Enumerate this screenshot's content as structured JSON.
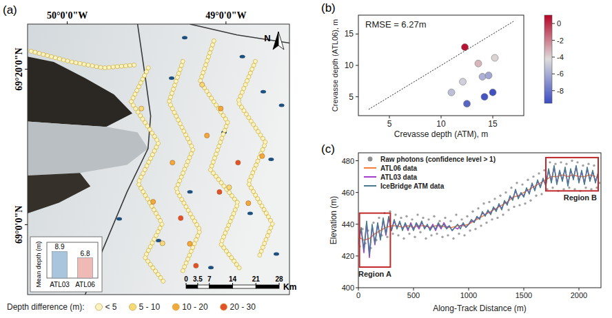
{
  "chart_data": [
    {
      "type": "map",
      "panel": "(a)",
      "xlim": [
        -50.25,
        -48.6
      ],
      "ylim": [
        68.85,
        69.43
      ],
      "xticks": [
        {
          "value": -50,
          "label": "50°0'0\"W"
        },
        {
          "value": -49,
          "label": "49°0'0\"W"
        }
      ],
      "yticks": [
        {
          "value": 69.3333,
          "label": "69°20'0\"N"
        },
        {
          "value": 69,
          "label": "69°0'0\"N"
        }
      ],
      "tracks": [
        {
          "x": [
            -49.489,
            -49.598,
            -49.424,
            -49.554,
            -49.402,
            -49.511,
            -49.38
          ],
          "y": [
            69.336,
            69.263,
            69.176,
            69.089,
            69.002,
            68.93,
            68.872
          ],
          "color": "#fbf4c2"
        },
        {
          "x": [
            -49.272,
            -49.359,
            -49.207,
            -49.315,
            -49.163,
            -49.272
          ],
          "y": [
            69.35,
            69.263,
            69.162,
            69.075,
            68.988,
            68.901
          ],
          "color": "#fbf4c2"
        },
        {
          "x": [
            -49.076,
            -49.163,
            -48.989,
            -49.098,
            -48.924,
            -49.033,
            -48.902
          ],
          "y": [
            69.394,
            69.307,
            69.22,
            69.118,
            69.046,
            68.959,
            68.901
          ],
          "color": "#fbf4c2"
        },
        {
          "x": [
            -48.815,
            -48.924,
            -48.75,
            -48.859,
            -48.707,
            -48.793
          ],
          "y": [
            69.35,
            69.263,
            69.176,
            69.089,
            69.002,
            68.93
          ],
          "color": "#fbf4c2"
        },
        {
          "x": [
            -50.228,
            -49.989,
            -49.772,
            -49.554
          ],
          "y": [
            69.372,
            69.35,
            69.336,
            69.343
          ],
          "color": "#fbf4c2"
        }
      ],
      "points": {
        "x": [
          -48.924,
          -49.041,
          -49.285,
          -49.189,
          -49.459,
          -49.12,
          -49.033,
          -48.859,
          -49.337,
          -49.228,
          -48.772,
          -49.533,
          -49.15,
          -48.98,
          -49.4
        ],
        "y": [
          69.133,
          69.07,
          69.014,
          68.912,
          69.049,
          69.191,
          69.249,
          69.046,
          69.133,
          68.959,
          69.147,
          69.249,
          69.3,
          69.08,
          68.96
        ],
        "colors": [
          "#e2512a",
          "#e2512a",
          "#e2512a",
          "#e2512a",
          "#f3a83c",
          "#f3a83c",
          "#f3a83c",
          "#f3a83c",
          "#f3a83c",
          "#f3a83c",
          "#f3a83c",
          "#f6da78",
          "#f6da78",
          "#f6da78",
          "#f6da78"
        ]
      },
      "north": "N",
      "scale_bar": {
        "ticks": [
          0,
          3.5,
          7,
          14,
          21,
          28
        ],
        "unit": "Km"
      },
      "legend_title": "Depth difference (m):",
      "legend_items": [
        {
          "label": "< 5",
          "color": "#fbf4c2"
        },
        {
          "label": "5 - 10",
          "color": "#f6da78"
        },
        {
          "label": "10 - 20",
          "color": "#f3a83c"
        },
        {
          "label": "20 - 30",
          "color": "#e2512a"
        }
      ]
    },
    {
      "type": "bar",
      "categories": [
        "ATL03",
        "ATL06"
      ],
      "values": [
        8.9,
        6.8
      ],
      "colors": [
        "#a9c4dd",
        "#efbab6"
      ],
      "y_label": "Mean depth (m)",
      "ylim": [
        0,
        12
      ],
      "data_labels": true,
      "tick_labels": "x"
    },
    {
      "type": "scatter",
      "panel": "(b)",
      "text": "RMSE = 6.27m",
      "x_label": "Crevasse depth (ATM), m",
      "y_label": "Crevasse depth (ATL06), m",
      "xlim": [
        2,
        18
      ],
      "xticks": [
        5,
        10,
        15
      ],
      "ylim": [
        2,
        18
      ],
      "yticks": [
        5,
        10,
        15
      ],
      "x": [
        12.3,
        13.6,
        15.2,
        12.1,
        14.0,
        14.6,
        11.0,
        14.2,
        15.0,
        12.5
      ],
      "y": [
        12.9,
        10.3,
        11.2,
        7.4,
        8.2,
        8.4,
        5.7,
        5.0,
        5.7,
        3.9
      ],
      "color_values": [
        0.6,
        -3.3,
        -4.0,
        -4.7,
        -5.8,
        -6.2,
        -5.3,
        -9.2,
        -9.3,
        -8.6
      ],
      "colorbar": {
        "lim": [
          -9.5,
          1
        ],
        "ticks": [
          -8,
          -6,
          -4,
          -2,
          0
        ]
      },
      "reference_line": {
        "x": [
          3,
          17
        ],
        "y": [
          3,
          17
        ],
        "line_style": "dotted"
      }
    },
    {
      "type": "line",
      "panel": "(c)",
      "x_label": "Along-Track Distance (m)",
      "y_label": "Elevation (m)",
      "xlim": [
        0,
        2200
      ],
      "xticks": [
        0,
        500,
        1000,
        1500,
        2000
      ],
      "ylim": [
        400,
        485
      ],
      "yticks": [
        400,
        420,
        440,
        460,
        480
      ],
      "legend": "upper left",
      "series": [
        {
          "name": "Raw photons (confidence level > 1)",
          "type": "scatter",
          "marker": "circle",
          "color": "#8f8f8f",
          "x": [
            12.5,
            37.5,
            62.5,
            87.5,
            112.5,
            137.5,
            162.5,
            187.5,
            212.5,
            237.5,
            262.5,
            287.5,
            312.5,
            337.5,
            362.5,
            387.5,
            412.5,
            437.5,
            462.5,
            487.5,
            512.5,
            537.5,
            562.5,
            587.5,
            612.5,
            637.5,
            662.5,
            687.5,
            712.5,
            737.5,
            762.5,
            787.5,
            812.5,
            837.5,
            862.5,
            887.5,
            912.5,
            937.5,
            962.5,
            987.5,
            1012.5,
            1037.5,
            1062.5,
            1087.5,
            1112.5,
            1137.5,
            1162.5,
            1187.5,
            1212.5,
            1237.5,
            1262.5,
            1287.5,
            1312.5,
            1337.5,
            1362.5,
            1387.5,
            1412.5,
            1437.5,
            1462.5,
            1487.5,
            1512.5,
            1537.5,
            1562.5,
            1587.5,
            1612.5,
            1637.5,
            1662.5,
            1687.5,
            1712.5,
            1737.5,
            1762.5,
            1787.5,
            1812.5,
            1837.5,
            1862.5,
            1887.5,
            1912.5,
            1937.5,
            1962.5,
            1987.5,
            2012.5,
            2037.5,
            2062.5,
            2087.5,
            2112.5,
            2137.5,
            2162.5,
            2187.5
          ],
          "values": [
            426,
            437,
            428,
            436,
            425,
            441,
            430,
            444,
            433,
            447,
            432,
            448,
            434,
            446,
            433,
            444,
            431,
            445,
            434,
            443,
            432,
            446,
            435,
            444,
            431,
            443,
            433,
            445,
            434,
            442,
            432,
            444,
            433,
            442,
            431,
            446,
            434,
            443,
            433,
            445,
            436,
            448,
            437,
            450,
            439,
            453,
            441,
            454,
            443,
            456,
            444,
            458,
            446,
            460,
            449,
            463,
            451,
            466,
            452,
            465,
            453,
            468,
            455,
            470,
            458,
            472,
            459,
            474,
            462,
            479,
            463,
            478,
            461,
            479,
            462,
            478,
            463,
            480,
            462,
            479,
            461,
            477,
            463,
            478,
            462,
            477,
            463,
            466
          ]
        },
        {
          "name": "ATL06 data",
          "type": "line",
          "color": "#f47d3b",
          "x": [
            0,
            50,
            100,
            150,
            200,
            250,
            300,
            350,
            400,
            450,
            500,
            550,
            600,
            650,
            700,
            750,
            800,
            850,
            900,
            950,
            1000,
            1050,
            1100,
            1150,
            1200,
            1250,
            1300,
            1350,
            1400,
            1450,
            1500,
            1550,
            1600,
            1650,
            1700,
            1750,
            1800,
            1850,
            1900,
            1950,
            2000,
            2050,
            2100,
            2150
          ],
          "values": [
            432,
            430,
            431,
            434,
            436,
            438,
            439,
            439,
            438,
            439,
            438,
            439,
            439,
            438,
            439,
            439,
            438,
            438,
            439,
            439,
            440,
            442,
            444,
            446,
            448,
            450,
            452,
            454,
            457,
            458,
            460,
            462,
            464,
            466,
            468,
            470,
            470,
            471,
            470,
            471,
            470,
            470,
            471,
            470
          ]
        },
        {
          "name": "ATL03 data",
          "type": "line",
          "color": "#a23ec9",
          "x": [
            0,
            25,
            50,
            75,
            100,
            125,
            150,
            175,
            200,
            225,
            250,
            275,
            300,
            325,
            350,
            375,
            400,
            425,
            450,
            475,
            500,
            525,
            550,
            575,
            600,
            625,
            650,
            675,
            700,
            725,
            750,
            775,
            800,
            825,
            850,
            875,
            900,
            925,
            950,
            975,
            1000,
            1025,
            1050,
            1075,
            1100,
            1125,
            1150,
            1175,
            1200,
            1225,
            1250,
            1275,
            1300,
            1325,
            1350,
            1375,
            1400,
            1425,
            1450,
            1475,
            1500,
            1525,
            1550,
            1575,
            1600,
            1625,
            1650,
            1675,
            1700,
            1725,
            1750,
            1775,
            1800,
            1825,
            1850,
            1875,
            1900,
            1925,
            1950,
            1975,
            2000,
            2025,
            2050,
            2075,
            2100,
            2125,
            2150,
            2175
          ],
          "values": [
            427,
            437,
            422,
            441,
            419,
            439,
            427,
            440,
            431,
            443,
            433,
            444,
            436,
            442,
            438,
            441,
            437,
            440,
            436,
            441,
            437,
            440,
            437,
            441,
            438,
            439,
            437,
            440,
            436,
            440,
            437,
            441,
            438,
            439,
            436,
            438,
            437,
            439,
            440,
            438,
            440,
            442,
            442,
            444,
            444,
            447,
            446,
            448,
            447,
            450,
            449,
            452,
            450,
            454,
            453,
            457,
            456,
            461,
            457,
            459,
            458,
            462,
            460,
            465,
            462,
            467,
            464,
            468,
            465,
            474,
            467,
            476,
            466,
            473,
            468,
            475,
            465,
            474,
            469,
            476,
            467,
            473,
            466,
            475,
            468,
            473,
            467,
            472
          ]
        },
        {
          "name": "IceBridge ATM data",
          "type": "line",
          "color": "#497b8f",
          "x": [
            0,
            25,
            50,
            75,
            100,
            125,
            150,
            175,
            200,
            225,
            250,
            275,
            300,
            325,
            350,
            375,
            400,
            425,
            450,
            475,
            500,
            525,
            550,
            575,
            600,
            625,
            650,
            675,
            700,
            725,
            750,
            775,
            800,
            825,
            850,
            875,
            900,
            925,
            950,
            975,
            1000,
            1025,
            1050,
            1075,
            1100,
            1125,
            1150,
            1175,
            1200,
            1225,
            1250,
            1275,
            1300,
            1325,
            1350,
            1375,
            1400,
            1425,
            1450,
            1475,
            1500,
            1525,
            1550,
            1575,
            1600,
            1625,
            1650,
            1675,
            1700,
            1725,
            1750,
            1775,
            1800,
            1825,
            1850,
            1875,
            1900,
            1925,
            1950,
            1975,
            2000,
            2025,
            2050,
            2075,
            2100,
            2125,
            2150,
            2175
          ],
          "values": [
            428,
            438,
            424,
            442,
            421,
            440,
            428,
            441,
            430,
            444,
            434,
            445,
            436,
            443,
            437,
            442,
            436,
            441,
            437,
            440,
            436,
            441,
            438,
            442,
            437,
            440,
            436,
            439,
            437,
            441,
            438,
            440,
            437,
            439,
            436,
            438,
            440,
            437,
            441,
            438,
            440,
            443,
            441,
            445,
            443,
            448,
            445,
            449,
            446,
            451,
            448,
            453,
            449,
            455,
            452,
            458,
            455,
            462,
            456,
            460,
            457,
            463,
            459,
            466,
            461,
            468,
            463,
            469,
            464,
            475,
            466,
            477,
            465,
            474,
            467,
            476,
            464,
            475,
            468,
            477,
            466,
            474,
            465,
            476,
            467,
            474,
            466,
            473
          ]
        }
      ],
      "annotations": [
        {
          "text": "Region A",
          "x": [
            10,
            290
          ],
          "y": [
            413,
            447
          ]
        },
        {
          "text": "Region B",
          "x": [
            1700,
            2175
          ],
          "y": [
            461,
            482
          ]
        }
      ]
    }
  ]
}
